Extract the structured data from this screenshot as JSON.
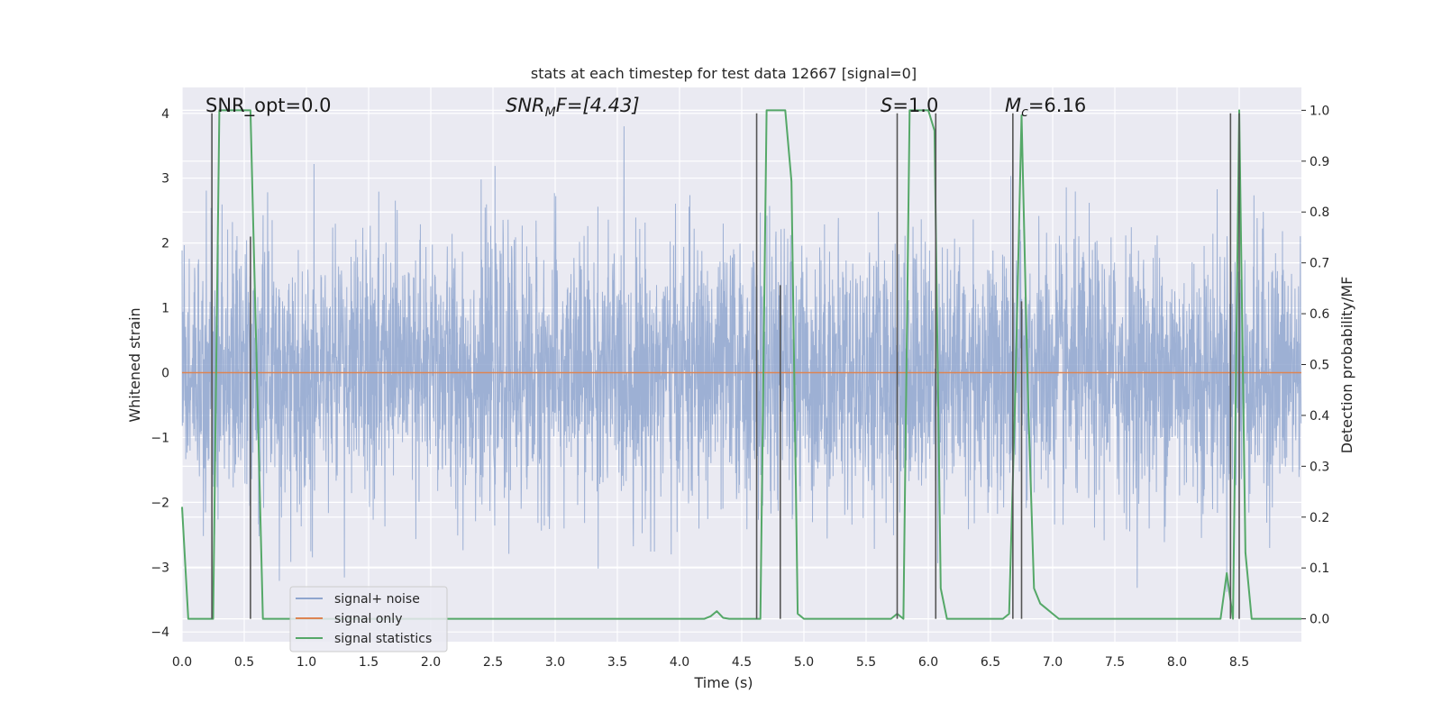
{
  "chart_data": {
    "type": "line",
    "title": "stats at each timestep for test data 12667 [signal=0]",
    "xlabel": "Time (s)",
    "ylabel": "Whitened strain",
    "y2label": "Detection probability/MF",
    "xlim": [
      0.0,
      9.0
    ],
    "ylim": [
      -4.15,
      4.4
    ],
    "y2lim": [
      -0.045,
      1.045
    ],
    "xticks": [
      "0.0",
      "0.5",
      "1.0",
      "1.5",
      "2.0",
      "2.5",
      "3.0",
      "3.5",
      "4.0",
      "4.5",
      "5.0",
      "5.5",
      "6.0",
      "6.5",
      "7.0",
      "7.5",
      "8.0",
      "8.5"
    ],
    "yticks": [
      "−4",
      "−3",
      "−2",
      "−1",
      "0",
      "1",
      "2",
      "3",
      "4"
    ],
    "y2ticks": [
      "0.0",
      "0.1",
      "0.2",
      "0.3",
      "0.4",
      "0.5",
      "0.6",
      "0.7",
      "0.8",
      "0.9",
      "1.0"
    ],
    "grid": true,
    "legend_position": "lower-left",
    "annotations": [
      {
        "id": "snr-opt",
        "text": "SNR_opt=0.0"
      },
      {
        "id": "snr-mf",
        "base": "SNR",
        "sub": "M",
        "tail": "F=[4.43]"
      },
      {
        "id": "s-value",
        "base": "S",
        "tail": "=1.0"
      },
      {
        "id": "mc-value",
        "base": "M",
        "sub": "c",
        "tail": "=6.16"
      }
    ],
    "series": [
      {
        "name": "signal+ noise",
        "color": "#8fa6cf",
        "axis": "left",
        "description": "whitened noise, approx. gaussian with std 1, extremes about ±3.8",
        "std": 1.0
      },
      {
        "name": "signal only",
        "color": "#dd8452",
        "axis": "left",
        "x": [
          0.0,
          9.0
        ],
        "y": [
          0.0,
          0.0
        ]
      },
      {
        "name": "signal statistics",
        "color": "#55a868",
        "axis": "right",
        "x": [
          0.0,
          0.05,
          0.1,
          0.15,
          0.2,
          0.25,
          0.3,
          0.35,
          0.4,
          0.45,
          0.5,
          0.55,
          0.6,
          0.65,
          0.7,
          0.8,
          1.0,
          2.0,
          3.0,
          4.0,
          4.2,
          4.25,
          4.3,
          4.35,
          4.4,
          4.45,
          4.5,
          4.55,
          4.6,
          4.65,
          4.7,
          4.75,
          4.8,
          4.85,
          4.9,
          4.95,
          5.0,
          5.2,
          5.5,
          5.7,
          5.75,
          5.8,
          5.85,
          5.9,
          5.95,
          6.0,
          6.05,
          6.1,
          6.15,
          6.2,
          6.3,
          6.4,
          6.5,
          6.6,
          6.65,
          6.7,
          6.75,
          6.8,
          6.85,
          6.9,
          6.95,
          7.0,
          7.05,
          7.1,
          7.2,
          7.5,
          8.0,
          8.3,
          8.35,
          8.4,
          8.45,
          8.5,
          8.55,
          8.6,
          8.65,
          8.7,
          8.8,
          9.0
        ],
        "y": [
          0.22,
          0.0,
          0.0,
          0.0,
          0.0,
          0.0,
          1.0,
          1.0,
          1.0,
          1.0,
          1.0,
          1.0,
          0.5,
          0.0,
          0.0,
          0.0,
          0.0,
          0.0,
          0.0,
          0.0,
          0.0,
          0.005,
          0.015,
          0.002,
          0.0,
          0.0,
          0.0,
          0.0,
          0.0,
          0.0,
          1.0,
          1.0,
          1.0,
          1.0,
          0.86,
          0.01,
          0.0,
          0.0,
          0.0,
          0.0,
          0.01,
          0.0,
          1.0,
          1.0,
          1.0,
          1.0,
          0.96,
          0.06,
          0.0,
          0.0,
          0.0,
          0.0,
          0.0,
          0.0,
          0.01,
          0.45,
          0.99,
          0.45,
          0.06,
          0.03,
          0.02,
          0.01,
          0.0,
          0.0,
          0.0,
          0.0,
          0.0,
          0.0,
          0.0,
          0.09,
          0.0,
          1.0,
          0.13,
          0.0,
          0.0,
          0.0,
          0.0,
          0.0
        ]
      }
    ],
    "detection_markers": {
      "color": "#555555",
      "x": [
        0.24,
        0.55,
        4.62,
        4.81,
        5.75,
        6.06,
        6.68,
        6.75,
        8.43,
        8.5
      ],
      "y_top": [
        4.0,
        2.1,
        4.0,
        1.35,
        4.0,
        4.0,
        4.0,
        1.1,
        4.0,
        4.0
      ]
    }
  }
}
